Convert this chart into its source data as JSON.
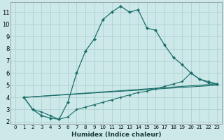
{
  "xlabel": "Humidex (Indice chaleur)",
  "bg_color": "#cce8e8",
  "grid_color": "#aacccc",
  "line_color": "#1a6e6a",
  "xlim": [
    -0.5,
    23.5
  ],
  "ylim": [
    1.8,
    11.8
  ],
  "yticks": [
    2,
    3,
    4,
    5,
    6,
    7,
    8,
    9,
    10,
    11
  ],
  "xticks": [
    0,
    1,
    2,
    3,
    4,
    5,
    6,
    7,
    8,
    9,
    10,
    11,
    12,
    13,
    14,
    15,
    16,
    17,
    18,
    19,
    20,
    21,
    22,
    23
  ],
  "line1_x": [
    1,
    2,
    3,
    4,
    5,
    6,
    7,
    8,
    9,
    10,
    11,
    12,
    13,
    14,
    15,
    16,
    17,
    18,
    19,
    20,
    21,
    22,
    23
  ],
  "line1_y": [
    4.0,
    3.0,
    2.5,
    2.3,
    2.2,
    3.6,
    6.0,
    7.8,
    8.8,
    10.4,
    11.0,
    11.5,
    11.0,
    11.2,
    9.7,
    9.5,
    8.3,
    7.3,
    6.7,
    6.0,
    5.5,
    5.2,
    5.1
  ],
  "line2_x": [
    1,
    2,
    3,
    4,
    5,
    6,
    7,
    8,
    9,
    10,
    11,
    12,
    13,
    14,
    15,
    16,
    17,
    18,
    19,
    20,
    21,
    22,
    23
  ],
  "line2_y": [
    4.0,
    3.0,
    2.8,
    2.5,
    2.2,
    2.4,
    3.0,
    3.2,
    3.4,
    3.6,
    3.8,
    4.0,
    4.2,
    4.4,
    4.5,
    4.7,
    4.9,
    5.1,
    5.3,
    6.0,
    5.5,
    5.3,
    5.1
  ],
  "line3_x": [
    1,
    23
  ],
  "line3_y": [
    4.0,
    5.1
  ],
  "line4_x": [
    1,
    23
  ],
  "line4_y": [
    4.0,
    5.0
  ]
}
